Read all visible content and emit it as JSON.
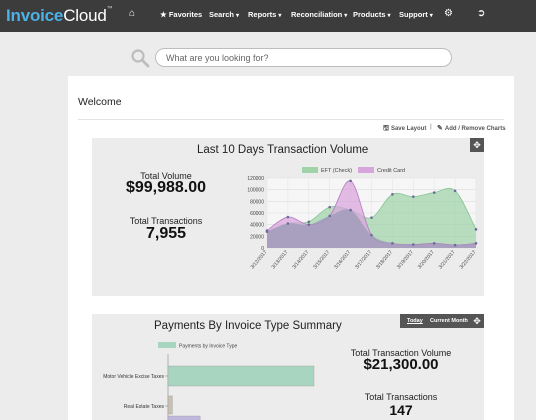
{
  "brand": {
    "name_part1": "Invoice",
    "name_part2": "Cloud",
    "trademark": "™"
  },
  "nav": {
    "items": [
      {
        "label": "Favorites"
      },
      {
        "label": "Search"
      },
      {
        "label": "Reports"
      },
      {
        "label": "Reconciliation"
      },
      {
        "label": "Products"
      },
      {
        "label": "Support"
      }
    ],
    "icons": [
      "home-icon",
      "star-icon",
      "gear-icon",
      "logout-icon"
    ]
  },
  "search": {
    "placeholder": "What are you looking for?"
  },
  "page": {
    "welcome": "Welcome"
  },
  "toolbar": {
    "save_layout": "Save Layout",
    "separator": "|",
    "add_remove": "Add / Remove Charts"
  },
  "chart1": {
    "title": "Last 10 Days Transaction Volume",
    "total_volume_label": "Total Volume",
    "total_volume_value": "$99,988.00",
    "total_transactions_label": "Total Transactions",
    "total_transactions_value": "7,955"
  },
  "chart2": {
    "title": "Payments By Invoice Type Summary",
    "range_today": "Today",
    "range_month": "Current Month",
    "total_volume_label": "Total Transaction Volume",
    "total_volume_value": "$21,300.00",
    "total_transactions_label": "Total Transactions",
    "total_transactions_value": "147"
  },
  "chart_data": [
    {
      "type": "area",
      "title": "Last 10 Days Transaction Volume",
      "categories": [
        "3/12/2017",
        "3/13/2017",
        "3/14/2017",
        "3/15/2017",
        "3/16/2017",
        "3/17/2017",
        "3/18/2017",
        "3/19/2017",
        "3/20/2017",
        "3/21/2017",
        "3/22/2017"
      ],
      "series": [
        {
          "name": "EFT (Check)",
          "color": "#9fd3a8",
          "values": [
            28000,
            42000,
            45000,
            70000,
            65000,
            52000,
            92000,
            88000,
            95000,
            98000,
            32000
          ]
        },
        {
          "name": "Credit Card",
          "color": "#d8a4dc",
          "values": [
            30000,
            53000,
            40000,
            55000,
            115000,
            22000,
            8000,
            6000,
            8000,
            5000,
            8000
          ]
        }
      ],
      "ylim": [
        0,
        120000
      ],
      "yticks": [
        0,
        20000,
        40000,
        60000,
        80000,
        100000,
        120000
      ],
      "ytick_labels": [
        "0",
        "20000",
        "40000",
        "60000",
        "80000",
        "100000",
        "120000"
      ],
      "legend_position": "top",
      "grid": true
    },
    {
      "type": "bar",
      "orientation": "horizontal",
      "title": "Payments By Invoice Type Summary",
      "categories": [
        "Motor Vehicle Excise Taxes",
        "Real Estate Taxes",
        ""
      ],
      "series": [
        {
          "name": "Payments by Invoice Type",
          "color": "#a8d5c0",
          "values": [
            100,
            3,
            22
          ]
        }
      ],
      "bar_colors": [
        "#a8d5c0",
        "#c8c0b0",
        "#c0b8dc"
      ],
      "legend_position": "top-left"
    }
  ]
}
